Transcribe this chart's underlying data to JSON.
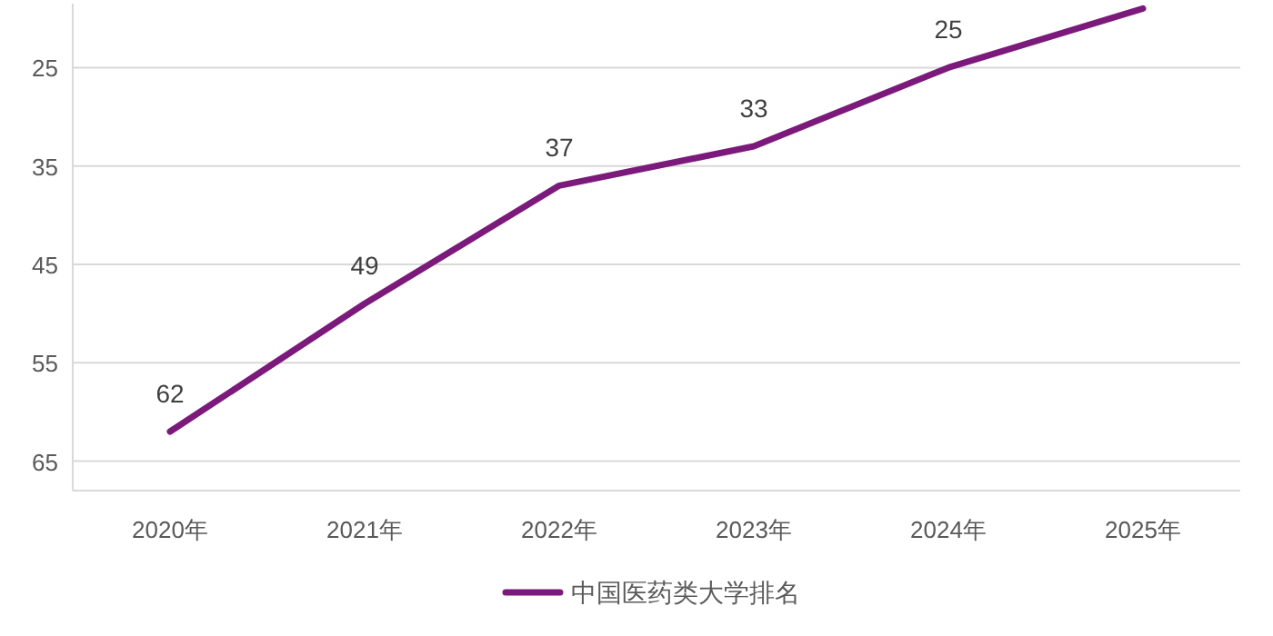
{
  "chart_data": {
    "type": "line",
    "categories": [
      "2020年",
      "2021年",
      "2022年",
      "2023年",
      "2024年",
      "2025年"
    ],
    "series": [
      {
        "name": "中国医药类大学排名",
        "color": "#7b1a7b",
        "values": [
          62,
          49,
          37,
          33,
          25,
          19
        ],
        "value_labels": [
          "62",
          "49",
          "37",
          "33",
          "25",
          null
        ]
      }
    ],
    "ylim": [
      68,
      18.5
    ],
    "yticks": [
      25,
      35,
      45,
      55,
      65
    ],
    "grid": "y",
    "legend": "bottom"
  }
}
